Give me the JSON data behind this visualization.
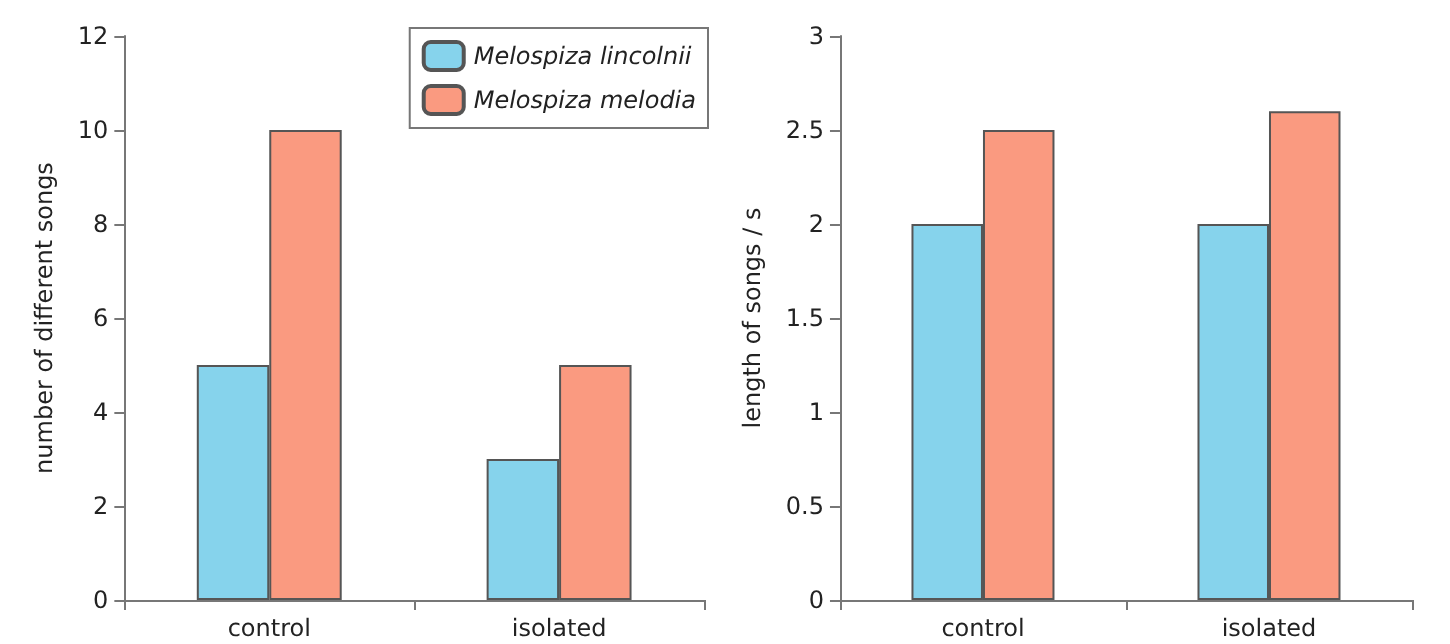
{
  "chart_data": [
    {
      "type": "bar",
      "categories": [
        "control",
        "isolated"
      ],
      "ylabel": "number of different songs",
      "ylim": [
        0,
        12
      ],
      "yticks": [
        0,
        2,
        4,
        6,
        8,
        10,
        12
      ],
      "grid": false,
      "legend": "top right",
      "series": [
        {
          "name": "Melospiza lincolnii",
          "color": "#86d3ec",
          "values": [
            5,
            3
          ]
        },
        {
          "name": "Melospiza melodia",
          "color": "#fa9a80",
          "values": [
            10,
            5
          ]
        }
      ]
    },
    {
      "type": "bar",
      "categories": [
        "control",
        "isolated"
      ],
      "ylabel": "length of songs / s",
      "ylim": [
        0,
        3
      ],
      "yticks": [
        0,
        0.5,
        1,
        1.5,
        2,
        2.5,
        3
      ],
      "grid": false,
      "legend": false,
      "series": [
        {
          "color": "#86d3ec",
          "values": [
            2,
            2
          ]
        },
        {
          "color": "#fa9a80",
          "values": [
            2.5,
            2.6
          ]
        }
      ]
    }
  ]
}
